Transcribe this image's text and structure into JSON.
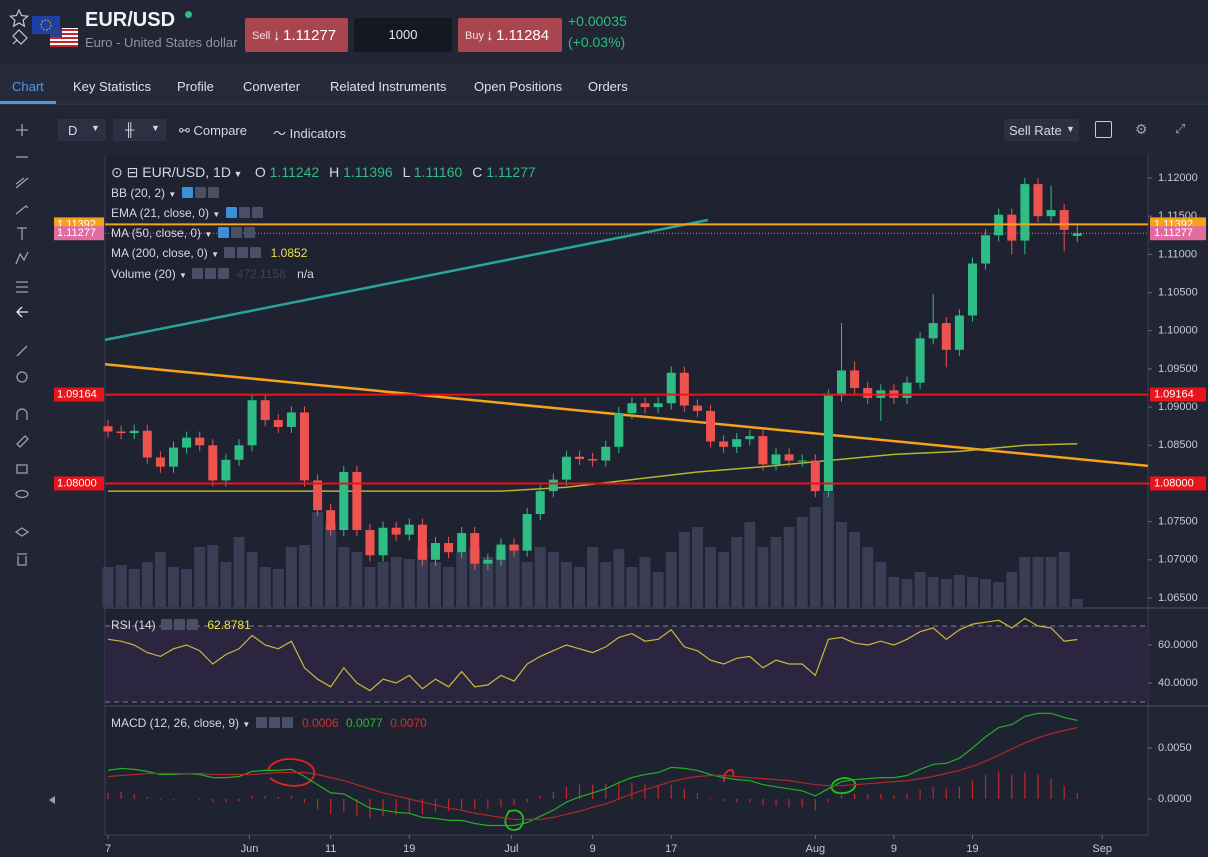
{
  "header": {
    "symbol": "EUR/USD",
    "subtitle": "Euro - United States dollar",
    "sell_label": "Sell",
    "sell_price": "1.11277",
    "quantity": "1000",
    "buy_label": "Buy",
    "buy_price": "1.11284",
    "change": "+0.00035",
    "change_pct": "(+0.03%)"
  },
  "tabs": [
    "Chart",
    "Key Statistics",
    "Profile",
    "Converter",
    "Related Instruments",
    "Open Positions",
    "Orders"
  ],
  "toolbar": {
    "interval": "D",
    "compare": "Compare",
    "indicators": "Indicators",
    "rate": "Sell Rate"
  },
  "chart_data": [
    {
      "type": "candlestick",
      "title": "EUR/USD, 1D",
      "ohlc": [
        {
          "key": "O",
          "value": 1.11242,
          "label": "1.11242"
        },
        {
          "key": "H",
          "value": 1.11396,
          "label": "1.11396"
        },
        {
          "key": "L",
          "value": 1.1116,
          "label": "1.11160"
        },
        {
          "key": "C",
          "value": 1.11277,
          "label": "1.11277"
        }
      ],
      "indicators": [
        {
          "name": "BB (20, 2)"
        },
        {
          "name": "EMA (21, close, 0)"
        },
        {
          "name": "MA (50, close, 0)"
        },
        {
          "name": "MA (200, close, 0)",
          "value_label": "1.0852"
        },
        {
          "name": "Volume (20)",
          "value_label": "472.1158",
          "extra": "n/a"
        }
      ],
      "up_color": "#2dbd85",
      "down_color": "#ef5350",
      "volume_color": "#3a3e55",
      "xlim": [
        -0.23,
        79.4
      ],
      "ylim": [
        1.063822,
        1.123012
      ],
      "vlim": [
        0,
        340
      ],
      "open": [
        1.0875,
        1.0868,
        1.0866,
        1.0869,
        1.0834,
        1.0822,
        1.0847,
        1.086,
        1.085,
        1.0804,
        1.0831,
        1.085,
        1.0909,
        1.0883,
        1.0874,
        1.0893,
        1.0804,
        1.0765,
        1.0739,
        1.0815,
        1.0739,
        1.0706,
        1.0742,
        1.0733,
        1.0746,
        1.07,
        1.0722,
        1.071,
        1.0735,
        1.0695,
        1.07,
        1.072,
        1.0712,
        1.076,
        1.079,
        1.0805,
        1.0835,
        1.0832,
        1.083,
        1.0848,
        1.0892,
        1.0905,
        1.09,
        1.0905,
        1.0945,
        1.0902,
        1.0895,
        1.0855,
        1.0848,
        1.0858,
        1.0862,
        1.0825,
        1.0838,
        1.083,
        1.083,
        1.079,
        1.0915,
        1.0948,
        1.0925,
        1.0912,
        1.0922,
        1.0912,
        1.0932,
        1.099,
        1.101,
        1.0975,
        1.102,
        1.1088,
        1.1125,
        1.1152,
        1.1118,
        1.1192,
        1.115,
        1.1158,
        1.11242
      ],
      "high": [
        1.0883,
        1.0876,
        1.0877,
        1.0877,
        1.0842,
        1.0855,
        1.0868,
        1.0868,
        1.0858,
        1.0839,
        1.0858,
        1.0917,
        1.0917,
        1.0891,
        1.0901,
        1.0901,
        1.0812,
        1.0773,
        1.0823,
        1.0823,
        1.0747,
        1.075,
        1.075,
        1.0754,
        1.0754,
        1.073,
        1.073,
        1.0743,
        1.0743,
        1.0708,
        1.0728,
        1.0728,
        1.0768,
        1.0798,
        1.0813,
        1.0843,
        1.0843,
        1.084,
        1.0856,
        1.09,
        1.0913,
        1.0913,
        1.0913,
        1.0953,
        1.0953,
        1.091,
        1.0903,
        1.0863,
        1.0866,
        1.087,
        1.087,
        1.0846,
        1.0846,
        1.0838,
        1.0838,
        1.0923,
        1.101,
        1.096,
        1.0933,
        1.093,
        1.093,
        1.094,
        1.0998,
        1.1048,
        1.1018,
        1.1028,
        1.1096,
        1.1133,
        1.116,
        1.116,
        1.12,
        1.12,
        1.119,
        1.1166,
        1.11396
      ],
      "low": [
        1.086,
        1.0858,
        1.0858,
        1.0826,
        1.0814,
        1.0814,
        1.0839,
        1.0842,
        1.0796,
        1.0796,
        1.0823,
        1.0842,
        1.0875,
        1.0866,
        1.0866,
        1.0796,
        1.0757,
        1.0731,
        1.0731,
        1.0731,
        1.0698,
        1.0698,
        1.0725,
        1.0725,
        1.0692,
        1.0692,
        1.0702,
        1.0702,
        1.0687,
        1.0687,
        1.0692,
        1.0704,
        1.0704,
        1.0752,
        1.0782,
        1.0797,
        1.0824,
        1.0822,
        1.0822,
        1.084,
        1.0884,
        1.0892,
        1.0892,
        1.0897,
        1.0894,
        1.0887,
        1.0847,
        1.084,
        1.084,
        1.085,
        1.0817,
        1.0817,
        1.0822,
        1.0822,
        1.0782,
        1.0782,
        1.0907,
        1.0917,
        1.0904,
        1.0882,
        1.0904,
        1.0904,
        1.0924,
        1.0982,
        1.0952,
        1.0967,
        1.1012,
        1.108,
        1.1117,
        1.11,
        1.11,
        1.1142,
        1.1142,
        1.1104,
        1.1116
      ],
      "close": [
        1.0868,
        1.0866,
        1.0869,
        1.0834,
        1.0822,
        1.0847,
        1.086,
        1.085,
        1.0804,
        1.0831,
        1.085,
        1.0909,
        1.0883,
        1.0874,
        1.0893,
        1.0804,
        1.0765,
        1.0739,
        1.0815,
        1.0739,
        1.0706,
        1.0742,
        1.0733,
        1.0746,
        1.07,
        1.0722,
        1.071,
        1.0735,
        1.0695,
        1.07,
        1.072,
        1.0712,
        1.076,
        1.079,
        1.0805,
        1.0835,
        1.0832,
        1.083,
        1.0848,
        1.0892,
        1.0905,
        1.09,
        1.0905,
        1.0945,
        1.0902,
        1.0895,
        1.0855,
        1.0848,
        1.0858,
        1.0862,
        1.0825,
        1.0838,
        1.083,
        1.083,
        1.079,
        1.0915,
        1.0948,
        1.0925,
        1.0912,
        1.0922,
        1.0912,
        1.0932,
        1.099,
        1.101,
        1.0975,
        1.102,
        1.1088,
        1.1125,
        1.1152,
        1.1118,
        1.1192,
        1.115,
        1.1158,
        1.1132,
        1.11277
      ],
      "volume": [
        40,
        42,
        38,
        45,
        55,
        40,
        38,
        60,
        62,
        45,
        70,
        55,
        40,
        38,
        60,
        62,
        95,
        85,
        60,
        55,
        40,
        45,
        50,
        48,
        60,
        45,
        40,
        55,
        60,
        50,
        58,
        62,
        45,
        60,
        55,
        45,
        40,
        60,
        45,
        58,
        40,
        50,
        35,
        55,
        75,
        80,
        60,
        55,
        70,
        85,
        60,
        70,
        80,
        90,
        100,
        115,
        85,
        75,
        60,
        45,
        30,
        28,
        35,
        30,
        28,
        32,
        30,
        28,
        25,
        35,
        50,
        50,
        50,
        55,
        8
      ],
      "ma_line": {
        "color": "#b5b52e",
        "x": [
          0,
          10,
          20,
          30,
          35,
          40,
          45,
          50,
          55,
          60,
          65,
          70,
          74
        ],
        "values": [
          1.079,
          1.079,
          1.079,
          1.079,
          1.0795,
          1.0805,
          1.0815,
          1.0822,
          1.083,
          1.0838,
          1.0842,
          1.085,
          1.0852
        ]
      },
      "trendlines": [
        {
          "color": "#26a69a",
          "x": [
            -0.23,
            45.8
          ],
          "values": [
            1.0988,
            1.1145
          ]
        },
        {
          "color": "#f7a21b",
          "x": [
            -0.23,
            79.4
          ],
          "values": [
            1.0956,
            1.0823
          ]
        }
      ],
      "levels": [
        {
          "value": 1.11392,
          "label": "1.11392",
          "color": "#f7a21b"
        },
        {
          "value": 1.09164,
          "label": "1.09164",
          "color": "#e8141b"
        },
        {
          "value": 1.08,
          "label": "1.08000",
          "color": "#e8141b"
        }
      ],
      "last_price": {
        "value": 1.11277,
        "label": "1.11277",
        "color": "#e06ca0"
      },
      "yticks": [
        {
          "value": 1.12,
          "label": "1.12000"
        },
        {
          "value": 1.115,
          "label": "1.11500"
        },
        {
          "value": 1.11,
          "label": "1.11000"
        },
        {
          "value": 1.105,
          "label": "1.10500"
        },
        {
          "value": 1.1,
          "label": "1.10000"
        },
        {
          "value": 1.095,
          "label": "1.09500"
        },
        {
          "value": 1.09,
          "label": "1.09000"
        },
        {
          "value": 1.085,
          "label": "1.08500"
        },
        {
          "value": 1.08,
          "label": "1.08000"
        },
        {
          "value": 1.075,
          "label": "1.07500"
        },
        {
          "value": 1.07,
          "label": "1.07000"
        },
        {
          "value": 1.065,
          "label": "1.06500"
        }
      ],
      "grid": false
    },
    {
      "type": "line",
      "title": "RSI (14)",
      "value_label": "62.8781",
      "color": "#c9b93a",
      "band_color": "#2c2540",
      "xlim": [
        -0.23,
        79.4
      ],
      "ylim": [
        28.4,
        78.4
      ],
      "bands": [
        30,
        70
      ],
      "values": [
        63,
        62,
        60,
        56,
        54,
        58,
        60,
        57,
        50,
        55,
        58,
        65,
        60,
        58,
        62,
        48,
        42,
        38,
        48,
        40,
        36,
        42,
        40,
        44,
        37,
        42,
        38,
        46,
        38,
        39,
        44,
        41,
        50,
        54,
        57,
        60,
        58,
        56,
        59,
        64,
        66,
        62,
        63,
        68,
        59,
        57,
        52,
        50,
        53,
        54,
        48,
        52,
        50,
        50,
        44,
        63,
        64,
        61,
        60,
        62,
        60,
        63,
        67,
        69,
        63,
        68,
        71,
        72,
        73,
        69,
        74,
        70,
        69,
        62,
        62.8781
      ],
      "yticks": [
        {
          "value": 60,
          "label": "60.0000"
        },
        {
          "value": 40,
          "label": "40.0000"
        }
      ]
    },
    {
      "type": "macd",
      "title": "MACD (12, 26, close, 9)",
      "value_labels": [
        "0.0006",
        "0.0077",
        "0.0070"
      ],
      "value_label_colors": [
        "#d03030",
        "#22c022",
        "#d03030"
      ],
      "xlim": [
        -0.23,
        79.4
      ],
      "ylim": [
        -0.00353,
        0.00892
      ],
      "histogram": {
        "color": "#c02828",
        "values": [
          0.0006,
          0.0007,
          0.0005,
          0.0002,
          -0.0001,
          -0.0001,
          0,
          -0.0001,
          -0.0003,
          -0.0003,
          -0.0002,
          0.0003,
          0.0003,
          0.0002,
          0.0003,
          -0.0004,
          -0.001,
          -0.0015,
          -0.0013,
          -0.0016,
          -0.0019,
          -0.0017,
          -0.0016,
          -0.0014,
          -0.0015,
          -0.0013,
          -0.0012,
          -0.001,
          -0.001,
          -0.001,
          -0.0008,
          -0.0006,
          -0.0003,
          0.0003,
          0.0007,
          0.0012,
          0.0014,
          0.0014,
          0.0015,
          0.0016,
          0.0016,
          0.0015,
          0.0013,
          0.0014,
          0.001,
          0.0006,
          0.0001,
          -0.0002,
          -0.0003,
          -0.0003,
          -0.0006,
          -0.0007,
          -0.0008,
          -0.0008,
          -0.0011,
          -0.0003,
          0.0004,
          0.0005,
          0.0005,
          0.0005,
          0.0004,
          0.0005,
          0.0009,
          0.0012,
          0.001,
          0.0012,
          0.0018,
          0.0024,
          0.0027,
          0.0024,
          0.0026,
          0.0024,
          0.002,
          0.0013,
          0.0006
        ]
      },
      "series": [
        {
          "name": "MACD",
          "color": "#22b022",
          "values": [
            0.0028,
            0.003,
            0.0029,
            0.0027,
            0.0024,
            0.0024,
            0.0025,
            0.0024,
            0.0021,
            0.0021,
            0.0022,
            0.0027,
            0.0028,
            0.0028,
            0.0029,
            0.0022,
            0.0014,
            0.0006,
            0.0005,
            -0.0002,
            -0.0009,
            -0.0011,
            -0.0013,
            -0.0014,
            -0.0018,
            -0.0019,
            -0.0021,
            -0.0021,
            -0.0024,
            -0.0026,
            -0.0026,
            -0.0026,
            -0.0023,
            -0.0017,
            -0.0011,
            -0.0003,
            0.0002,
            0.0006,
            0.001,
            0.0016,
            0.0021,
            0.0024,
            0.0026,
            0.0031,
            0.003,
            0.0028,
            0.0024,
            0.0021,
            0.0019,
            0.0018,
            0.0014,
            0.0012,
            0.001,
            0.0008,
            0.0003,
            0.001,
            0.0017,
            0.0019,
            0.002,
            0.0021,
            0.0021,
            0.0023,
            0.0029,
            0.0034,
            0.0035,
            0.004,
            0.005,
            0.0061,
            0.007,
            0.0073,
            0.0081,
            0.0084,
            0.0084,
            0.008,
            0.0077
          ]
        },
        {
          "name": "Signal",
          "color": "#b02828",
          "values": [
            0.0022,
            0.0023,
            0.0024,
            0.0025,
            0.0025,
            0.0025,
            0.0025,
            0.0025,
            0.0024,
            0.0024,
            0.0024,
            0.0024,
            0.0025,
            0.0026,
            0.0026,
            0.0026,
            0.0024,
            0.0021,
            0.0018,
            0.0014,
            0.001,
            0.0006,
            0.0003,
            0.0,
            -0.0003,
            -0.0006,
            -0.0009,
            -0.0011,
            -0.0014,
            -0.0016,
            -0.0018,
            -0.002,
            -0.002,
            -0.002,
            -0.0018,
            -0.0015,
            -0.0012,
            -0.0008,
            -0.0005,
            0.0,
            0.0005,
            0.0009,
            0.0013,
            0.0017,
            0.002,
            0.0022,
            0.0023,
            0.0023,
            0.0022,
            0.0021,
            0.002,
            0.0019,
            0.0018,
            0.0016,
            0.0014,
            0.0013,
            0.0013,
            0.0014,
            0.0015,
            0.0016,
            0.0017,
            0.0018,
            0.002,
            0.0022,
            0.0025,
            0.0028,
            0.0032,
            0.0037,
            0.0043,
            0.0049,
            0.0055,
            0.006,
            0.0064,
            0.0067,
            0.007
          ]
        }
      ],
      "yticks": [
        {
          "value": 0.005,
          "label": "0.0050"
        },
        {
          "value": 0,
          "label": "0.0000"
        }
      ],
      "xticks": [
        {
          "value": 0,
          "label": "7"
        },
        {
          "value": 10.8,
          "label": "Jun"
        },
        {
          "value": 17,
          "label": "11"
        },
        {
          "value": 23,
          "label": "19"
        },
        {
          "value": 30.8,
          "label": "Jul"
        },
        {
          "value": 37,
          "label": "9"
        },
        {
          "value": 43,
          "label": "17"
        },
        {
          "value": 54,
          "label": "Aug"
        },
        {
          "value": 60,
          "label": "9"
        },
        {
          "value": 66,
          "label": "19"
        },
        {
          "value": 75.9,
          "label": "Sep"
        }
      ]
    }
  ]
}
